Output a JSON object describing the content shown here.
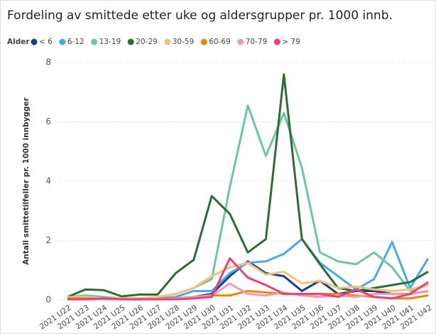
{
  "chart_data": {
    "type": "line",
    "title": "Fordeling av smittede etter uke og aldersgrupper pr. 1000 innb.",
    "legend_title": "Alder",
    "y_label": "Antall smittetilfeller pr. 1000 innbygger",
    "categories": [
      "2021 U22",
      "2021 U23",
      "2021 U24",
      "2021 U25",
      "2021 U26",
      "2021 U27",
      "2021 U28",
      "2021 U29",
      "2021 U30",
      "2021 U31",
      "2021 U32",
      "2021 U33",
      "2021 U34",
      "2021 U35",
      "2021 U36",
      "2021 U37",
      "2021 U38",
      "2021 U39",
      "2021 U40",
      "2021 U41",
      "2021 U42"
    ],
    "ylim": [
      0,
      8
    ],
    "yticks": [
      0,
      2,
      4,
      6,
      8
    ],
    "grid": true,
    "series": [
      {
        "name": "< 6",
        "color": "#12418a",
        "values": [
          0.05,
          0.05,
          0.05,
          0.02,
          0.02,
          0.05,
          0.05,
          0.1,
          0.2,
          0.8,
          1.3,
          0.9,
          0.8,
          0.3,
          0.65,
          0.2,
          0.3,
          0.3,
          0.2,
          0.2,
          0.3
        ]
      },
      {
        "name": "6-12",
        "color": "#4aa8f0",
        "values": [
          0.1,
          0.1,
          0.05,
          0.05,
          0.05,
          0.05,
          0.1,
          0.3,
          0.3,
          0.9,
          1.25,
          1.3,
          1.55,
          2.05,
          1.25,
          0.8,
          0.35,
          0.7,
          1.95,
          0.4,
          1.4
        ]
      },
      {
        "name": "13-19",
        "color": "#6ec6a0",
        "values": [
          0.1,
          0.15,
          0.1,
          0.05,
          0.05,
          0.1,
          0.2,
          0.4,
          0.7,
          3.8,
          6.55,
          4.85,
          6.3,
          4.45,
          1.6,
          1.3,
          1.2,
          1.6,
          1.1,
          0.3,
          0.5
        ]
      },
      {
        "name": "20-29",
        "color": "#2f6b35",
        "values": [
          0.1,
          0.35,
          0.33,
          0.12,
          0.18,
          0.18,
          0.9,
          1.35,
          3.5,
          2.9,
          1.6,
          2.05,
          7.6,
          2.05,
          1.2,
          0.4,
          0.3,
          0.4,
          0.5,
          0.6,
          0.95
        ]
      },
      {
        "name": "30-59",
        "color": "#f5c27a",
        "values": [
          0.1,
          0.1,
          0.05,
          0.05,
          0.05,
          0.1,
          0.2,
          0.4,
          0.8,
          1.1,
          1.25,
          0.85,
          0.95,
          0.55,
          0.65,
          0.4,
          0.45,
          0.35,
          0.3,
          0.35,
          0.5
        ]
      },
      {
        "name": "60-69",
        "color": "#e8870f",
        "values": [
          0.05,
          0.05,
          0.03,
          0.02,
          0.02,
          0.03,
          0.05,
          0.1,
          0.15,
          0.15,
          0.3,
          0.25,
          0.2,
          0.2,
          0.2,
          0.2,
          0.15,
          0.1,
          0.05,
          0.05,
          0.15
        ]
      },
      {
        "name": "70-79",
        "color": "#f29bb0",
        "values": [
          0.02,
          0.02,
          0.02,
          0.02,
          0.02,
          0.02,
          0.05,
          0.1,
          0.15,
          0.55,
          0.2,
          0.15,
          0.25,
          0.15,
          0.1,
          0.15,
          0.1,
          0.2,
          0.2,
          0.2,
          0.3
        ]
      },
      {
        "name": "> 79",
        "color": "#e8427b",
        "values": [
          0.02,
          0.02,
          0.05,
          0.02,
          0.02,
          0.02,
          0.02,
          0.05,
          0.1,
          1.4,
          0.75,
          0.5,
          0.2,
          0.2,
          0.2,
          0.1,
          0.35,
          0.1,
          0.05,
          0.2,
          0.6
        ]
      }
    ]
  }
}
